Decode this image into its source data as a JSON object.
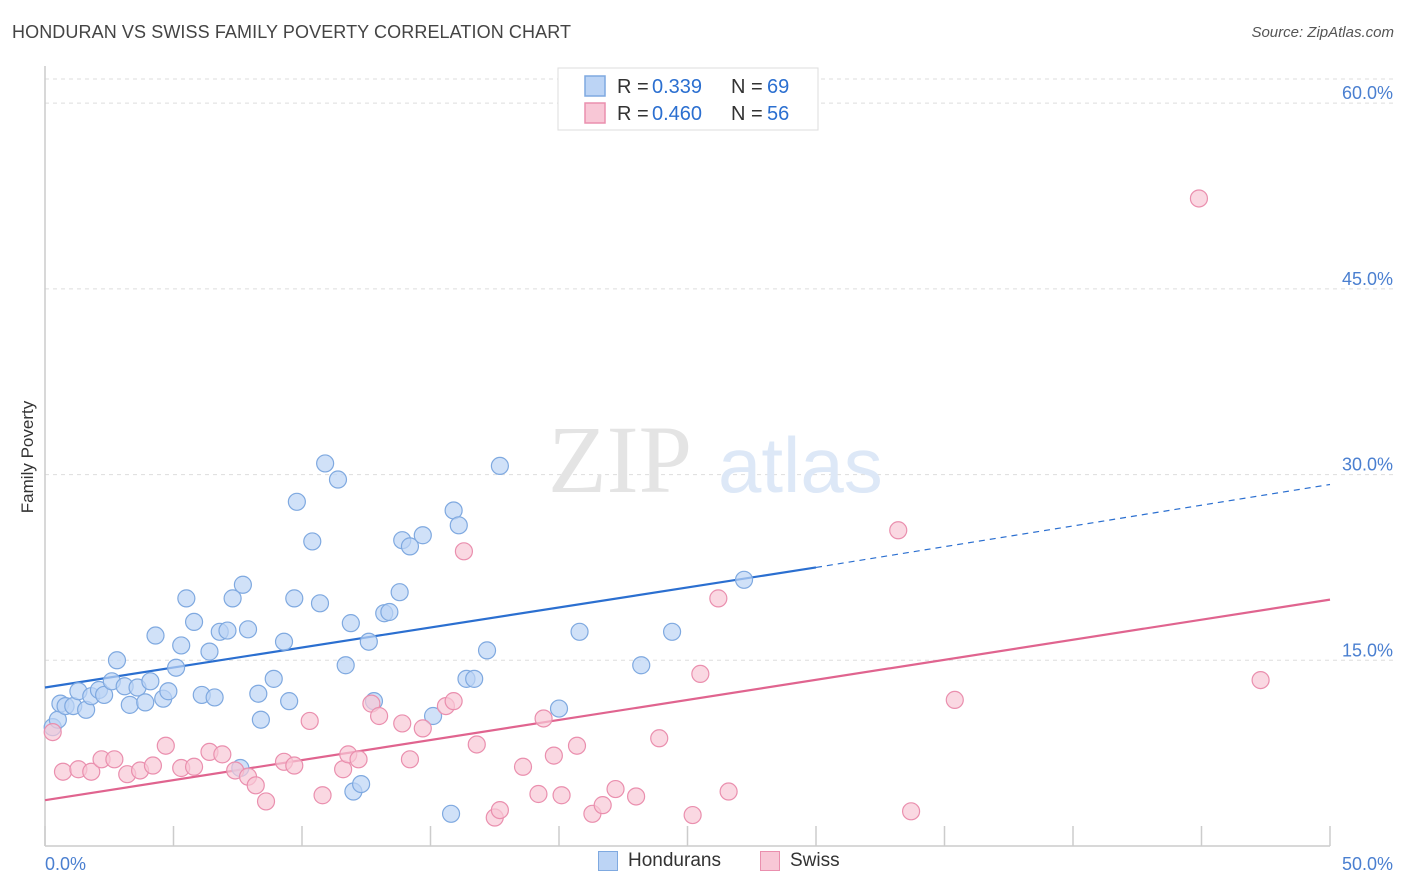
{
  "title": "HONDURAN VS SWISS FAMILY POVERTY CORRELATION CHART",
  "source": "Source: ZipAtlas.com",
  "watermark": {
    "zip": "ZIP",
    "atlas": "atlas"
  },
  "colors": {
    "blue_fill": "#bcd4f5",
    "blue_stroke": "#7fa9e0",
    "blue_line": "#2b6fd0",
    "pink_fill": "#f8c7d6",
    "pink_stroke": "#ea8fae",
    "pink_line": "#e0648f",
    "tick_text": "#4a7fd0",
    "grid": "#dddddd"
  },
  "legend": {
    "rows": [
      {
        "r_label": "R =",
        "r_value": "0.339",
        "n_label": "N =",
        "n_value": "69"
      },
      {
        "r_label": "R =",
        "r_value": "0.460",
        "n_label": "N =",
        "n_value": "56"
      }
    ]
  },
  "bottom_legend": {
    "hondurans": "Hondurans",
    "swiss": "Swiss"
  },
  "chart_data": {
    "type": "scatter",
    "title": "HONDURAN VS SWISS FAMILY POVERTY CORRELATION CHART",
    "xlabel": "",
    "ylabel": "Family Poverty",
    "xlim": [
      0,
      50
    ],
    "ylim": [
      0,
      63
    ],
    "x_tick_labels": [
      "0.0%",
      "50.0%"
    ],
    "y_ticks": [
      15,
      30,
      45,
      60
    ],
    "y_tick_labels": [
      "15.0%",
      "30.0%",
      "45.0%",
      "60.0%"
    ],
    "grid": true,
    "legend_placement": "top-center",
    "series": [
      {
        "name": "Hondurans",
        "r": 0.339,
        "n": 69,
        "trend": {
          "x0": 0,
          "y0": 12.8,
          "x1": 30,
          "y1": 22.5,
          "x_dash_end": 50,
          "y_dash_end": 29.2
        },
        "points": [
          [
            0.3,
            9.6
          ],
          [
            0.5,
            10.2
          ],
          [
            0.6,
            11.5
          ],
          [
            0.8,
            11.3
          ],
          [
            1.1,
            11.3
          ],
          [
            1.3,
            12.5
          ],
          [
            1.6,
            11.0
          ],
          [
            1.8,
            12.1
          ],
          [
            2.1,
            12.6
          ],
          [
            2.3,
            12.2
          ],
          [
            2.6,
            13.3
          ],
          [
            2.8,
            15.0
          ],
          [
            3.1,
            12.9
          ],
          [
            3.3,
            11.4
          ],
          [
            3.6,
            12.8
          ],
          [
            3.9,
            11.6
          ],
          [
            4.1,
            13.3
          ],
          [
            4.3,
            17.0
          ],
          [
            4.6,
            11.9
          ],
          [
            4.8,
            12.5
          ],
          [
            5.1,
            14.4
          ],
          [
            5.3,
            16.2
          ],
          [
            5.5,
            20.0
          ],
          [
            5.8,
            18.1
          ],
          [
            6.1,
            12.2
          ],
          [
            6.4,
            15.7
          ],
          [
            6.6,
            12.0
          ],
          [
            6.8,
            17.3
          ],
          [
            7.1,
            17.4
          ],
          [
            7.3,
            20.0
          ],
          [
            7.6,
            6.3
          ],
          [
            7.7,
            21.1
          ],
          [
            7.9,
            17.5
          ],
          [
            8.3,
            12.3
          ],
          [
            8.4,
            10.2
          ],
          [
            8.9,
            13.5
          ],
          [
            9.3,
            16.5
          ],
          [
            9.5,
            11.7
          ],
          [
            9.7,
            20.0
          ],
          [
            9.8,
            27.8
          ],
          [
            10.4,
            24.6
          ],
          [
            10.7,
            19.6
          ],
          [
            10.9,
            30.9
          ],
          [
            11.4,
            29.6
          ],
          [
            11.7,
            14.6
          ],
          [
            11.9,
            18.0
          ],
          [
            12.0,
            4.4
          ],
          [
            12.3,
            5.0
          ],
          [
            12.6,
            16.5
          ],
          [
            12.8,
            11.7
          ],
          [
            13.2,
            18.8
          ],
          [
            13.4,
            18.9
          ],
          [
            13.8,
            20.5
          ],
          [
            13.9,
            24.7
          ],
          [
            14.2,
            24.2
          ],
          [
            14.7,
            25.1
          ],
          [
            15.1,
            10.5
          ],
          [
            15.8,
            2.6
          ],
          [
            15.9,
            27.1
          ],
          [
            16.1,
            25.9
          ],
          [
            16.4,
            13.5
          ],
          [
            16.7,
            13.5
          ],
          [
            17.2,
            15.8
          ],
          [
            17.7,
            30.7
          ],
          [
            20.0,
            11.1
          ],
          [
            20.8,
            17.3
          ],
          [
            23.2,
            14.6
          ],
          [
            24.4,
            17.3
          ],
          [
            27.2,
            21.5
          ]
        ]
      },
      {
        "name": "Swiss",
        "r": 0.46,
        "n": 56,
        "trend": {
          "x0": 0,
          "y0": 3.7,
          "x1": 50,
          "y1": 19.9
        },
        "points": [
          [
            0.3,
            9.2
          ],
          [
            0.7,
            6.0
          ],
          [
            1.3,
            6.2
          ],
          [
            1.8,
            6.0
          ],
          [
            2.2,
            7.0
          ],
          [
            2.7,
            7.0
          ],
          [
            3.2,
            5.8
          ],
          [
            3.7,
            6.1
          ],
          [
            4.2,
            6.5
          ],
          [
            4.7,
            8.1
          ],
          [
            5.3,
            6.3
          ],
          [
            5.8,
            6.4
          ],
          [
            6.4,
            7.6
          ],
          [
            6.9,
            7.4
          ],
          [
            7.4,
            6.1
          ],
          [
            7.9,
            5.6
          ],
          [
            8.2,
            4.9
          ],
          [
            8.6,
            3.6
          ],
          [
            9.3,
            6.8
          ],
          [
            9.7,
            6.5
          ],
          [
            10.3,
            10.1
          ],
          [
            10.8,
            4.1
          ],
          [
            11.6,
            6.2
          ],
          [
            11.8,
            7.4
          ],
          [
            12.2,
            7.0
          ],
          [
            12.7,
            11.5
          ],
          [
            13.0,
            10.5
          ],
          [
            13.9,
            9.9
          ],
          [
            14.2,
            7.0
          ],
          [
            14.7,
            9.5
          ],
          [
            15.6,
            11.3
          ],
          [
            15.9,
            11.7
          ],
          [
            16.3,
            23.8
          ],
          [
            16.8,
            8.2
          ],
          [
            17.5,
            2.3
          ],
          [
            17.7,
            2.9
          ],
          [
            18.6,
            6.4
          ],
          [
            19.2,
            4.2
          ],
          [
            19.4,
            10.3
          ],
          [
            19.8,
            7.3
          ],
          [
            20.1,
            4.1
          ],
          [
            20.7,
            8.1
          ],
          [
            21.3,
            2.6
          ],
          [
            21.7,
            3.3
          ],
          [
            22.2,
            4.6
          ],
          [
            23.0,
            4.0
          ],
          [
            23.9,
            8.7
          ],
          [
            25.2,
            2.5
          ],
          [
            25.5,
            13.9
          ],
          [
            26.2,
            20.0
          ],
          [
            26.6,
            4.4
          ],
          [
            33.2,
            25.5
          ],
          [
            33.7,
            2.8
          ],
          [
            35.4,
            11.8
          ],
          [
            44.9,
            52.3
          ],
          [
            47.3,
            13.4
          ]
        ]
      }
    ]
  }
}
